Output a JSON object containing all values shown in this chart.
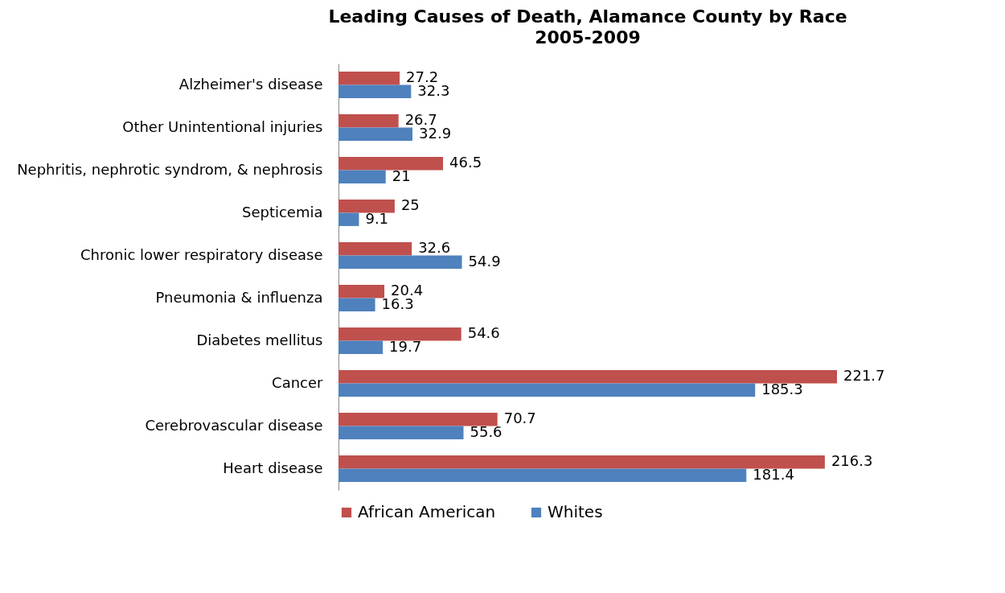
{
  "chart_data": {
    "type": "bar",
    "orientation": "horizontal",
    "title": "Leading Causes of Death, Alamance County by Race",
    "subtitle": "2005-2009",
    "categories": [
      "Alzheimer's disease",
      "Other Unintentional injuries",
      "Nephritis, nephrotic syndrom, & nephrosis",
      "Septicemia",
      "Chronic lower respiratory disease",
      "Pneumonia & influenza",
      "Diabetes mellitus",
      "Cancer",
      "Cerebrovascular disease",
      "Heart disease"
    ],
    "series": [
      {
        "name": "African American",
        "color": "#c0504d",
        "values": [
          27.2,
          26.7,
          46.5,
          25,
          32.6,
          20.4,
          54.6,
          221.7,
          70.7,
          216.3
        ]
      },
      {
        "name": "Whites",
        "color": "#4f81bd",
        "values": [
          32.3,
          32.9,
          21,
          9.1,
          54.9,
          16.3,
          19.7,
          185.3,
          55.6,
          181.4
        ]
      }
    ],
    "data_labels": true,
    "legend": "bottom",
    "tick_labels": "y"
  }
}
